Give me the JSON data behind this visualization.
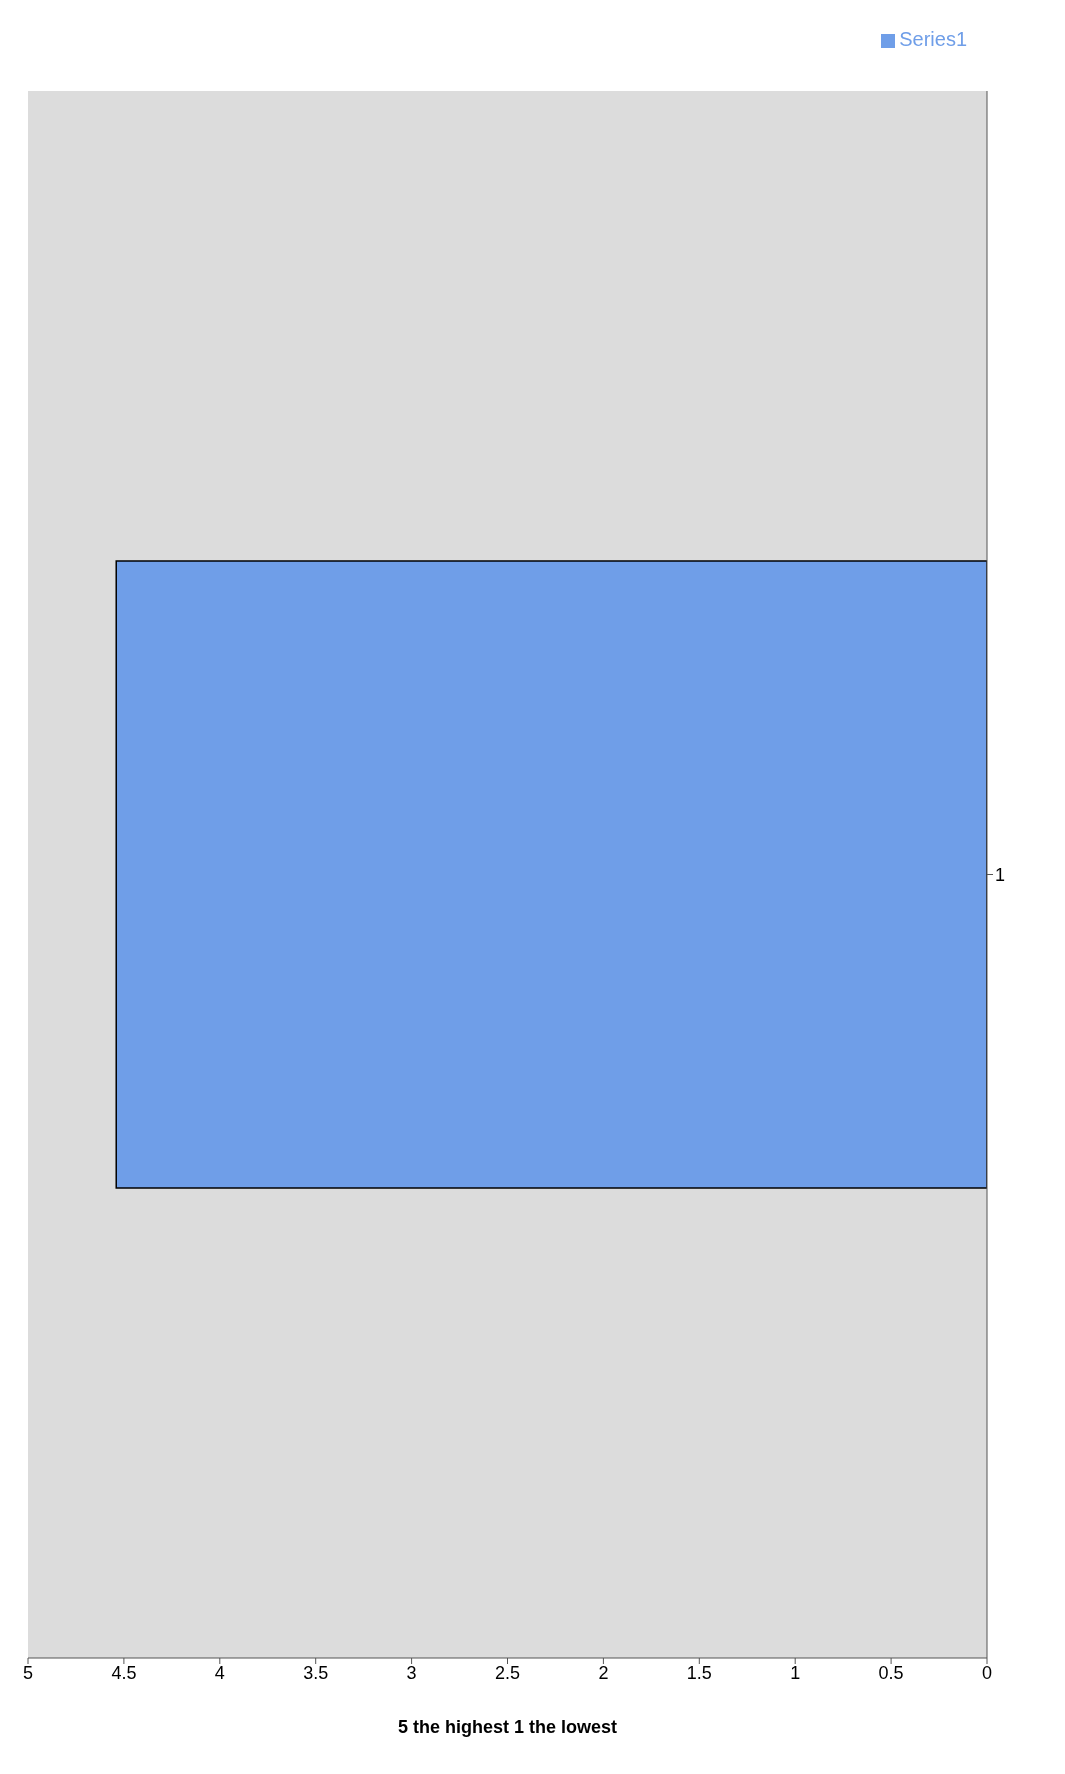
{
  "chart_data": {
    "type": "bar",
    "orientation": "horizontal",
    "categories": [
      "1"
    ],
    "series": [
      {
        "name": "Series1",
        "color": "#6f9ee8",
        "values": [
          4.54
        ]
      }
    ],
    "xlabel": "5 the highest 1 the lowest",
    "xlim": [
      5,
      0
    ],
    "xticks": [
      0,
      0.5,
      1,
      1.5,
      2,
      2.5,
      3,
      3.5,
      4,
      4.5,
      5
    ],
    "grid": false,
    "legend": "top right"
  }
}
